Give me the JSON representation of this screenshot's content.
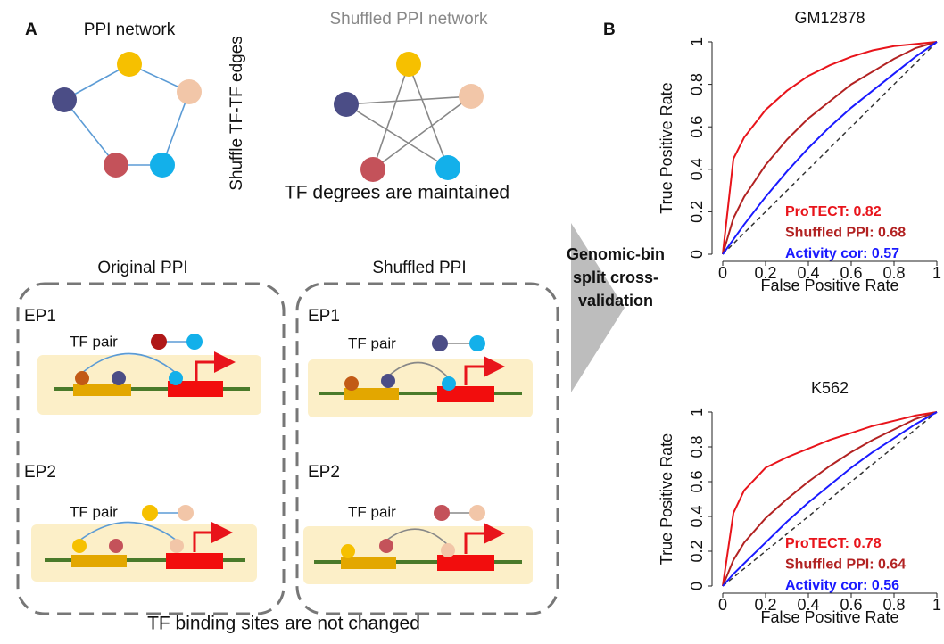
{
  "panel_a": {
    "label": "A",
    "ppi_title": "PPI network",
    "shuffle_label": "Shuffle TF-TF edges",
    "shuffled_title": "Shuffled PPI network",
    "degree_note": "TF degrees are maintained",
    "original_box": {
      "title": "Original PPI",
      "examples": [
        {
          "name": "EP1",
          "pair_label": "TF pair"
        },
        {
          "name": "EP2",
          "pair_label": "TF pair"
        }
      ]
    },
    "shuffled_box": {
      "title": "Shuffled PPI",
      "examples": [
        {
          "name": "EP1",
          "pair_label": "TF pair"
        },
        {
          "name": "EP2",
          "pair_label": "TF pair"
        }
      ]
    },
    "footer": "TF binding sites are not changed"
  },
  "arrow_label": [
    "Genomic-bin",
    "split cross-",
    "validation"
  ],
  "panel_b_label": "B",
  "chart_data": [
    {
      "type": "line",
      "title": "GM12878",
      "x_label": "False Positive Rate",
      "y_label": "True Positive Rate",
      "x": [
        0,
        0.05,
        0.1,
        0.2,
        0.3,
        0.4,
        0.5,
        0.6,
        0.7,
        0.8,
        0.9,
        1
      ],
      "series": [
        {
          "name": "ProTECT: 0.82",
          "color": "#e8141b",
          "values": [
            0,
            0.45,
            0.55,
            0.68,
            0.77,
            0.84,
            0.89,
            0.93,
            0.96,
            0.98,
            0.99,
            1
          ]
        },
        {
          "name": "Shuffled PPI: 0.68",
          "color": "#b22222",
          "values": [
            0,
            0.17,
            0.27,
            0.42,
            0.54,
            0.64,
            0.72,
            0.8,
            0.86,
            0.92,
            0.97,
            1
          ]
        },
        {
          "name": "Activity cor: 0.57",
          "color": "#1a1aff",
          "values": [
            0,
            0.07,
            0.14,
            0.27,
            0.39,
            0.5,
            0.6,
            0.69,
            0.77,
            0.85,
            0.93,
            1
          ]
        }
      ],
      "xlim": [
        0,
        1
      ],
      "ylim": [
        0,
        1
      ],
      "xticks": [
        0,
        0.2,
        0.4,
        0.6,
        0.8,
        1
      ],
      "yticks": [
        0,
        0.2,
        0.4,
        0.6,
        0.8,
        1
      ]
    },
    {
      "type": "line",
      "title": "K562",
      "x_label": "False Positive Rate",
      "y_label": "True Positive Rate",
      "x": [
        0,
        0.05,
        0.1,
        0.2,
        0.3,
        0.4,
        0.5,
        0.6,
        0.7,
        0.8,
        0.9,
        1
      ],
      "series": [
        {
          "name": "ProTECT: 0.78",
          "color": "#e8141b",
          "values": [
            0,
            0.42,
            0.55,
            0.68,
            0.74,
            0.79,
            0.84,
            0.88,
            0.92,
            0.95,
            0.98,
            1
          ]
        },
        {
          "name": "Shuffled PPI: 0.64",
          "color": "#b22222",
          "values": [
            0,
            0.15,
            0.25,
            0.39,
            0.5,
            0.6,
            0.69,
            0.77,
            0.84,
            0.9,
            0.96,
            1
          ]
        },
        {
          "name": "Activity cor: 0.56",
          "color": "#1a1aff",
          "values": [
            0,
            0.07,
            0.13,
            0.25,
            0.37,
            0.48,
            0.58,
            0.68,
            0.77,
            0.85,
            0.93,
            1
          ]
        }
      ],
      "xlim": [
        0,
        1
      ],
      "ylim": [
        0,
        1
      ],
      "xticks": [
        0,
        0.2,
        0.4,
        0.6,
        0.8,
        1
      ],
      "yticks": [
        0,
        0.2,
        0.4,
        0.6,
        0.8,
        1
      ]
    }
  ]
}
